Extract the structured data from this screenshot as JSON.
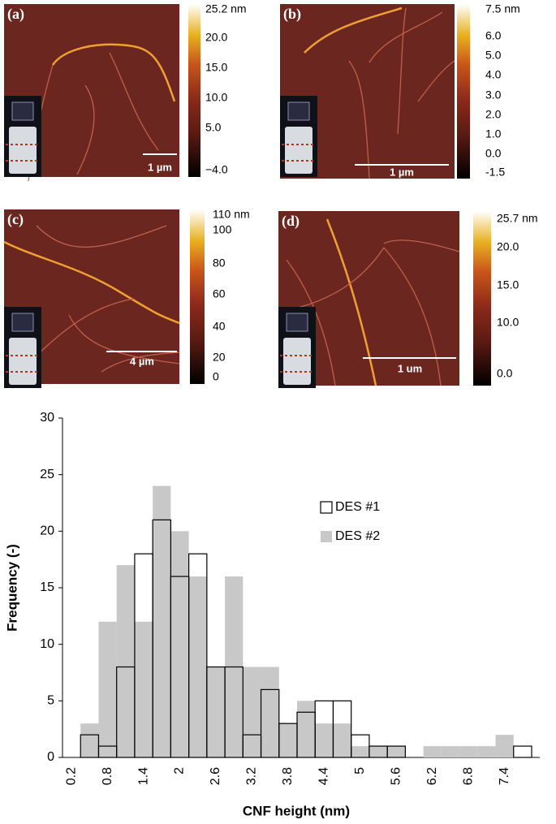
{
  "panels": [
    {
      "label": "(a)",
      "scale_bar": "1 µm",
      "colorbar_labels": [
        "25.2 nm",
        "20.0",
        "15.0",
        "10.0",
        "5.0",
        "−4.0"
      ]
    },
    {
      "label": "(b)",
      "scale_bar": "1 µm",
      "colorbar_labels": [
        "7.5 nm",
        "6.0",
        "5.0",
        "4.0",
        "3.0",
        "2.0",
        "1.0",
        "0.0",
        "-1.5"
      ]
    },
    {
      "label": "(c)",
      "scale_bar": "4 µm",
      "colorbar_labels": [
        "110 nm",
        "100",
        "80",
        "60",
        "40",
        "20",
        "0"
      ]
    },
    {
      "label": "(d)",
      "scale_bar": "1 um",
      "colorbar_labels": [
        "25.7 nm",
        "20.0",
        "15.0",
        "10.0",
        "0.0"
      ]
    }
  ],
  "chart_data": {
    "type": "bar",
    "x_label": "CNF height (nm)",
    "y_label": "Frequency (-)",
    "categories": [
      "0.2",
      null,
      "0.8",
      null,
      "1.4",
      null,
      "2",
      null,
      "2.6",
      null,
      "3.2",
      null,
      "3.8",
      null,
      "4.4",
      null,
      "5",
      null,
      "5.6",
      null,
      "6.2",
      null,
      "6.8",
      null,
      "7.4",
      null
    ],
    "series": [
      {
        "name": "DES #2",
        "color": "#c8c8c8",
        "values": [
          0,
          3,
          12,
          17,
          12,
          24,
          20,
          16,
          8,
          16,
          8,
          8,
          3,
          5,
          3,
          3,
          1,
          1,
          1,
          0,
          1,
          1,
          1,
          1,
          2,
          0
        ]
      },
      {
        "name": "DES #1",
        "color": "#000000",
        "values": [
          0,
          2,
          1,
          8,
          18,
          21,
          16,
          18,
          8,
          8,
          2,
          6,
          3,
          4,
          5,
          5,
          2,
          1,
          1,
          0,
          0,
          0,
          0,
          0,
          0,
          1
        ]
      }
    ],
    "ylim": [
      0,
      30
    ],
    "yticks": [
      0,
      5,
      10,
      15,
      20,
      25,
      30
    ],
    "grid": false
  }
}
